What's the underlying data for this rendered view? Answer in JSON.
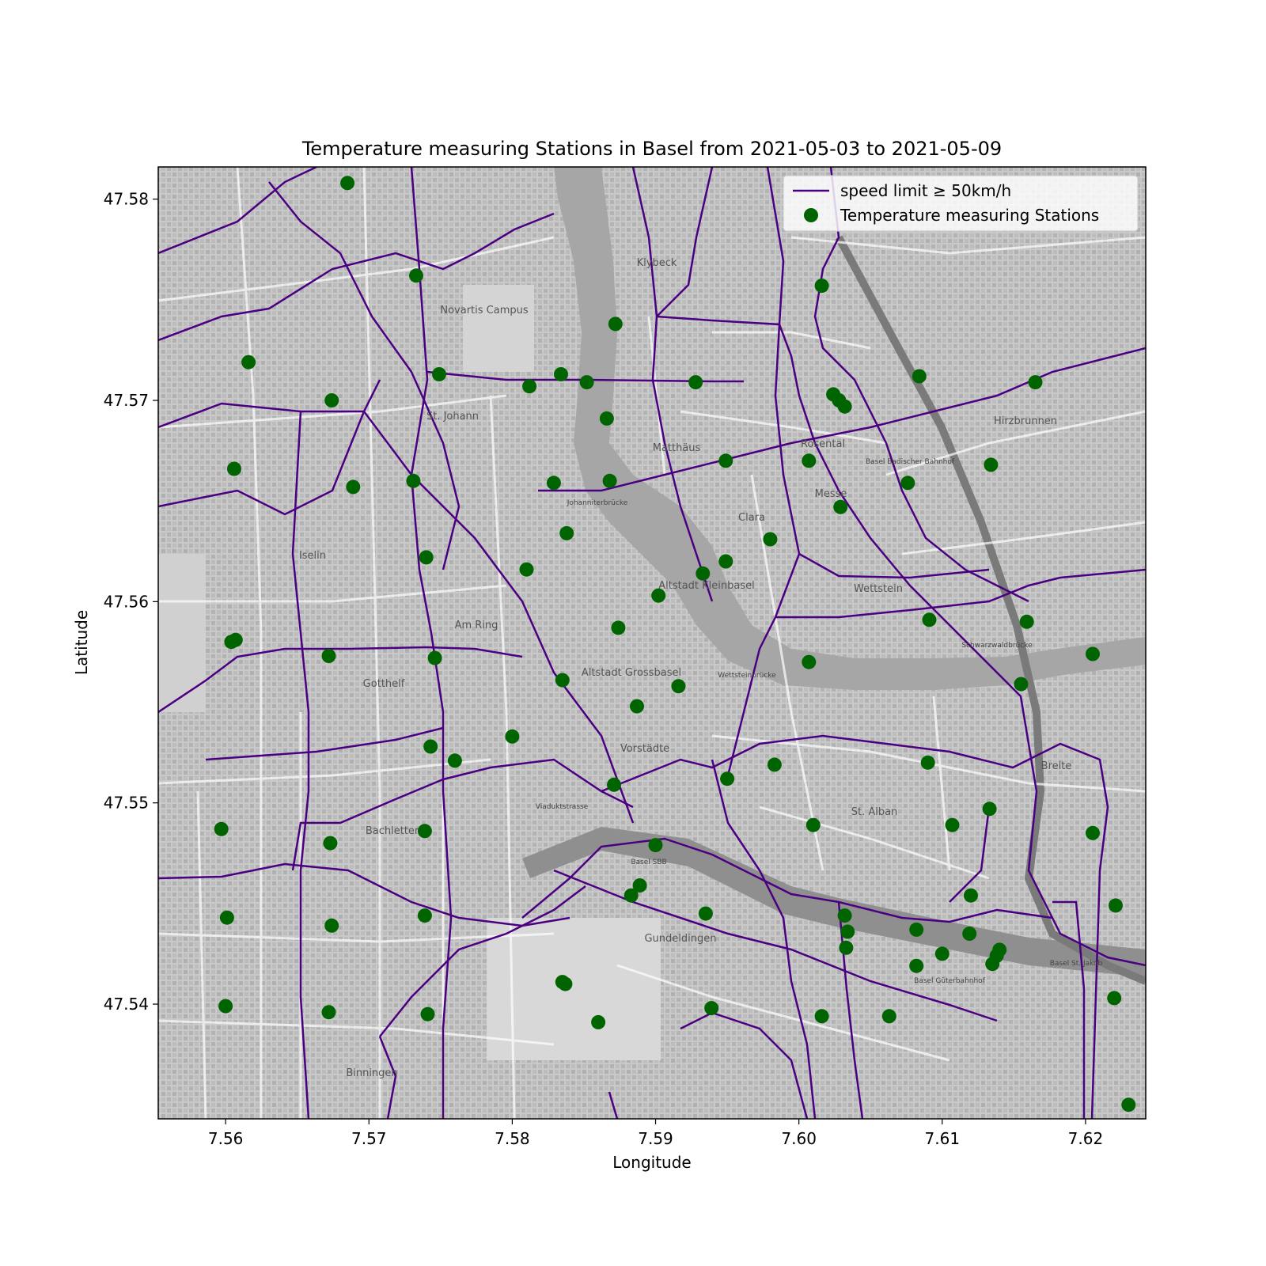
{
  "chart_data": {
    "type": "scatter",
    "title": "Temperature measuring Stations in Basel from 2021-05-03 to 2021-05-09",
    "xlabel": "Longitude",
    "ylabel": "Latitude",
    "xlim": [
      7.5553,
      7.6242
    ],
    "ylim": [
      47.5343,
      47.5816
    ],
    "x_ticks": [
      7.56,
      7.57,
      7.58,
      7.59,
      7.6,
      7.61,
      7.62
    ],
    "x_tick_labels": [
      "7.56",
      "7.57",
      "7.58",
      "7.59",
      "7.60",
      "7.61",
      "7.62"
    ],
    "y_ticks": [
      47.54,
      47.55,
      47.56,
      47.57,
      47.58
    ],
    "y_tick_labels": [
      "47.54",
      "47.55",
      "47.56",
      "47.57",
      "47.58"
    ],
    "legend": {
      "position": "upper-right",
      "entries": [
        {
          "label": "speed limit ≥ 50km/h",
          "kind": "line",
          "color": "#4b0082"
        },
        {
          "label": "Temperature measuring Stations",
          "kind": "marker",
          "color": "#006400"
        }
      ]
    },
    "basemap": {
      "style": "grayscale street map",
      "place_labels": [
        "Novartis Campus",
        "St. Johann",
        "Matthäus",
        "Rosental",
        "Hirzbrunnen",
        "Iselin",
        "Am Ring",
        "Altstadt Kleinbasel",
        "Wettstein",
        "Clara",
        "Messe",
        "Gotthelf",
        "Altstadt Grossbasel",
        "Vorstädte",
        "Bachletten",
        "St. Alban",
        "Gundeldingen",
        "Binningen",
        "Breite",
        "Klybeck",
        "Basel SBB",
        "Basel Badischer Bahnhof",
        "Basel Güterbahnhof",
        "Basel St. Jakob",
        "Johanniterbrücke",
        "Wettsteinbrücke",
        "Schwarzwaldbrücke",
        "Viaduktstrasse"
      ]
    },
    "series": [
      {
        "name": "Temperature measuring Stations",
        "color": "#006400",
        "points": [
          [
            7.5685,
            47.5808
          ],
          [
            7.5733,
            47.5762
          ],
          [
            7.5616,
            47.5719
          ],
          [
            7.5674,
            47.57
          ],
          [
            7.5749,
            47.5713
          ],
          [
            7.5812,
            47.5707
          ],
          [
            7.5834,
            47.5713
          ],
          [
            7.5852,
            47.5709
          ],
          [
            7.5872,
            47.5738
          ],
          [
            7.5866,
            47.5691
          ],
          [
            7.5928,
            47.5709
          ],
          [
            7.5606,
            47.5666
          ],
          [
            7.5689,
            47.5657
          ],
          [
            7.5731,
            47.566
          ],
          [
            7.5829,
            47.5659
          ],
          [
            7.5868,
            47.566
          ],
          [
            7.5949,
            47.567
          ],
          [
            7.6016,
            47.5757
          ],
          [
            7.6024,
            47.5703
          ],
          [
            7.6028,
            47.57
          ],
          [
            7.6032,
            47.5697
          ],
          [
            7.6007,
            47.567
          ],
          [
            7.6084,
            47.5712
          ],
          [
            7.6165,
            47.5709
          ],
          [
            7.6134,
            47.5668
          ],
          [
            7.6076,
            47.5659
          ],
          [
            7.6029,
            47.5647
          ],
          [
            7.5838,
            47.5634
          ],
          [
            7.581,
            47.5616
          ],
          [
            7.574,
            47.5622
          ],
          [
            7.5933,
            47.5614
          ],
          [
            7.5949,
            47.562
          ],
          [
            7.598,
            47.5631
          ],
          [
            7.5902,
            47.5603
          ],
          [
            7.5874,
            47.5587
          ],
          [
            7.5604,
            47.558
          ],
          [
            7.5607,
            47.5581
          ],
          [
            7.5672,
            47.5573
          ],
          [
            7.5746,
            47.5572
          ],
          [
            7.5835,
            47.5561
          ],
          [
            7.5916,
            47.5558
          ],
          [
            7.6007,
            47.557
          ],
          [
            7.6091,
            47.5591
          ],
          [
            7.6159,
            47.559
          ],
          [
            7.6155,
            47.5559
          ],
          [
            7.6205,
            47.5574
          ],
          [
            7.5887,
            47.5548
          ],
          [
            7.58,
            47.5533
          ],
          [
            7.5743,
            47.5528
          ],
          [
            7.576,
            47.5521
          ],
          [
            7.5871,
            47.5509
          ],
          [
            7.595,
            47.5512
          ],
          [
            7.5983,
            47.5519
          ],
          [
            7.609,
            47.552
          ],
          [
            7.6133,
            47.5497
          ],
          [
            7.6107,
            47.5489
          ],
          [
            7.601,
            47.5489
          ],
          [
            7.5597,
            47.5487
          ],
          [
            7.5673,
            47.548
          ],
          [
            7.5739,
            47.5486
          ],
          [
            7.59,
            47.5479
          ],
          [
            7.6205,
            47.5485
          ],
          [
            7.5889,
            47.5459
          ],
          [
            7.5883,
            47.5454
          ],
          [
            7.5935,
            47.5445
          ],
          [
            7.5601,
            47.5443
          ],
          [
            7.5674,
            47.5439
          ],
          [
            7.5739,
            47.5444
          ],
          [
            7.6032,
            47.5444
          ],
          [
            7.6034,
            47.5436
          ],
          [
            7.6033,
            47.5428
          ],
          [
            7.6082,
            47.5437
          ],
          [
            7.61,
            47.5425
          ],
          [
            7.612,
            47.5454
          ],
          [
            7.6119,
            47.5435
          ],
          [
            7.6135,
            47.542
          ],
          [
            7.6138,
            47.5424
          ],
          [
            7.614,
            47.5427
          ],
          [
            7.6082,
            47.5419
          ],
          [
            7.6221,
            47.5449
          ],
          [
            7.5835,
            47.5411
          ],
          [
            7.5837,
            47.541
          ],
          [
            7.56,
            47.5399
          ],
          [
            7.5672,
            47.5396
          ],
          [
            7.5741,
            47.5395
          ],
          [
            7.586,
            47.5391
          ],
          [
            7.5939,
            47.5398
          ],
          [
            7.6016,
            47.5394
          ],
          [
            7.6063,
            47.5394
          ],
          [
            7.622,
            47.5403
          ],
          [
            7.623,
            47.535
          ]
        ]
      }
    ]
  }
}
